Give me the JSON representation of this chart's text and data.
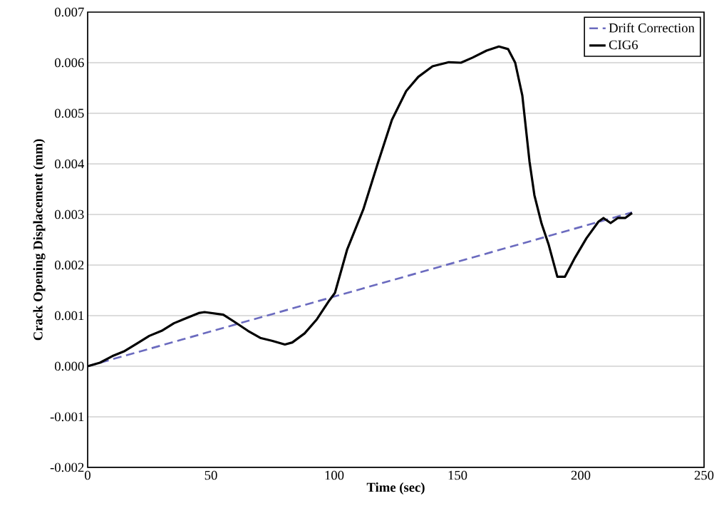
{
  "chart_data": {
    "type": "line",
    "xlabel": "Time (sec)",
    "ylabel": "Crack Opening Displacement (mm)",
    "xlim": [
      0,
      250
    ],
    "xticks": [
      0,
      50,
      100,
      150,
      200,
      250
    ],
    "ylim": [
      -0.002,
      0.007
    ],
    "yticks": [
      -0.002,
      -0.001,
      {
        "value": 0,
        "label": "0.000"
      },
      0.001,
      0.002,
      0.003,
      0.004,
      0.005,
      0.006,
      0.007
    ],
    "grid": "y",
    "legend": "top right",
    "marker": "none",
    "series": [
      {
        "name": "Drift Correction",
        "color": "#6b6bbf",
        "line_style": "dashed",
        "x": [
          0,
          220.8
        ],
        "values": [
          0,
          0.00304
        ]
      },
      {
        "name": "CIG6",
        "color": "#000000",
        "line_style": "solid",
        "x": [
          0,
          5,
          10,
          15,
          20,
          25,
          30,
          35,
          40,
          45,
          47.4,
          55,
          59.8,
          65,
          70,
          75,
          80,
          83,
          88,
          93,
          98,
          100.3,
          105.2,
          111.8,
          117.6,
          123.4,
          129.2,
          134.1,
          139.9,
          146.5,
          151.4,
          156.1,
          161.8,
          166.8,
          170.5,
          173.4,
          176.3,
          179.2,
          181.2,
          184.1,
          187,
          190.5,
          193.6,
          197.7,
          202.3,
          207.2,
          209.2,
          212.1,
          215,
          218,
          220.8
        ],
        "values": [
          0,
          7e-05,
          0.0002,
          0.0003,
          0.00045,
          0.0006,
          0.0007,
          0.00085,
          0.00095,
          0.00105,
          0.00107,
          0.00102,
          0.00087,
          0.0007,
          0.00056,
          0.0005,
          0.00043,
          0.00047,
          0.00065,
          0.00093,
          0.0013,
          0.00145,
          0.0023,
          0.0031,
          0.004,
          0.00487,
          0.00544,
          0.00572,
          0.00593,
          0.00601,
          0.006,
          0.0061,
          0.00624,
          0.00632,
          0.00627,
          0.006,
          0.00535,
          0.00405,
          0.00338,
          0.00282,
          0.0024,
          0.00177,
          0.00177,
          0.00215,
          0.00253,
          0.00286,
          0.00293,
          0.00283,
          0.00293,
          0.00293,
          0.00303
        ]
      }
    ]
  }
}
